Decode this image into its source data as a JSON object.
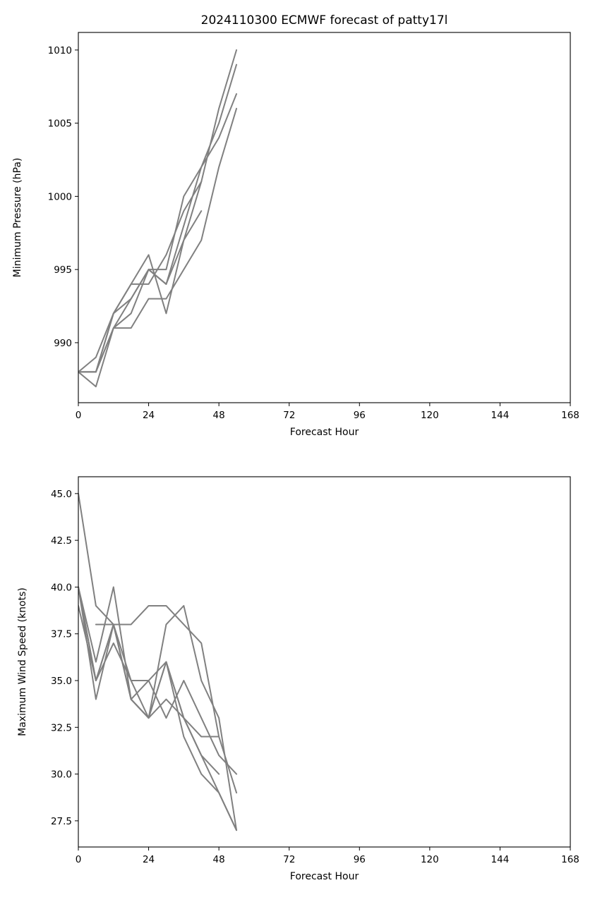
{
  "colors": {
    "series": "#808080",
    "axes": "#000000",
    "background": "#ffffff"
  },
  "chart_data": [
    {
      "type": "line",
      "title": "2024110300 ECMWF forecast of patty17l",
      "xlabel": "Forecast Hour",
      "ylabel": "Minimum Pressure (hPa)",
      "xlim": [
        0,
        168
      ],
      "ylim": [
        985.9,
        1011.2
      ],
      "xticks": [
        0,
        24,
        48,
        72,
        96,
        120,
        144,
        168
      ],
      "xtick_labels": [
        "0",
        "24",
        "48",
        "72",
        "96",
        "120",
        "144",
        "168"
      ],
      "yticks": [
        990,
        995,
        1000,
        1005,
        1010
      ],
      "ytick_labels": [
        "990",
        "995",
        "1000",
        "1005",
        "1010"
      ],
      "grid": false,
      "series": [
        {
          "x": [
            0,
            6,
            12,
            18,
            24,
            30,
            36,
            42,
            48,
            54
          ],
          "values": [
            988,
            988,
            992,
            994,
            996,
            992,
            997,
            1001,
            1006,
            1010
          ]
        },
        {
          "x": [
            0,
            6,
            12,
            18,
            24,
            30,
            36,
            42,
            48,
            54
          ],
          "values": [
            988,
            989,
            992,
            993,
            995,
            995,
            1000,
            1002,
            1005,
            1009
          ]
        },
        {
          "x": [
            0,
            6,
            12,
            18,
            24,
            30,
            36,
            42,
            48,
            54
          ],
          "values": [
            988,
            987,
            991,
            991,
            993,
            993,
            995,
            997,
            1002,
            1006
          ]
        },
        {
          "x": [
            0,
            6,
            12,
            18,
            24,
            30,
            36,
            42,
            48,
            54
          ],
          "values": [
            988,
            988,
            991,
            993,
            995,
            994,
            998,
            1002,
            1004,
            1007
          ]
        },
        {
          "x": [
            0,
            6,
            12,
            18,
            24,
            30,
            36,
            42
          ],
          "values": [
            988,
            988,
            992,
            994,
            994,
            996,
            999,
            1001
          ]
        },
        {
          "x": [
            0,
            6,
            12,
            18,
            24,
            30,
            36,
            42
          ],
          "values": [
            988,
            988,
            991,
            992,
            995,
            994,
            997,
            999
          ]
        }
      ]
    },
    {
      "type": "line",
      "title": "",
      "xlabel": "Forecast Hour",
      "ylabel": "Maximum Wind Speed (knots)",
      "xlim": [
        0,
        168
      ],
      "ylim": [
        26.1,
        45.9
      ],
      "xticks": [
        0,
        24,
        48,
        72,
        96,
        120,
        144,
        168
      ],
      "xtick_labels": [
        "0",
        "24",
        "48",
        "72",
        "96",
        "120",
        "144",
        "168"
      ],
      "yticks": [
        27.5,
        30.0,
        32.5,
        35.0,
        37.5,
        40.0,
        42.5,
        45.0
      ],
      "ytick_labels": [
        "27.5",
        "30.0",
        "32.5",
        "35.0",
        "37.5",
        "40.0",
        "42.5",
        "45.0"
      ],
      "grid": false,
      "series": [
        {
          "x": [
            0,
            6,
            12,
            18,
            24,
            30,
            36,
            42,
            48,
            54
          ],
          "values": [
            45,
            39,
            38,
            35,
            35,
            36,
            32,
            30,
            29,
            27
          ]
        },
        {
          "x": [
            0,
            6,
            12,
            18,
            24,
            30,
            36,
            42,
            48,
            54
          ],
          "values": [
            40,
            36,
            40,
            34,
            33,
            38,
            39,
            35,
            33,
            27
          ]
        },
        {
          "x": [
            0,
            6,
            12,
            18,
            24,
            30,
            36,
            42,
            48,
            54
          ],
          "values": [
            40,
            34,
            38,
            34,
            35,
            33,
            35,
            33,
            31,
            30
          ]
        },
        {
          "x": [
            0,
            6,
            12,
            18,
            24,
            30,
            36,
            42,
            48,
            54
          ],
          "values": [
            39,
            35,
            37,
            35,
            33,
            36,
            33,
            31,
            29,
            27
          ]
        },
        {
          "x": [
            6,
            12,
            18,
            24,
            30,
            36,
            42,
            48,
            54
          ],
          "values": [
            38,
            38,
            38,
            39,
            39,
            38,
            37,
            32,
            29
          ]
        },
        {
          "x": [
            0,
            6,
            12,
            18,
            24,
            30,
            36,
            42,
            48
          ],
          "values": [
            40,
            35,
            38,
            34,
            33,
            34,
            33,
            32,
            32
          ]
        },
        {
          "x": [
            0,
            6,
            12,
            18,
            24,
            30,
            36,
            42,
            48
          ],
          "values": [
            40,
            35,
            38,
            34,
            33,
            36,
            33,
            31,
            30
          ]
        }
      ]
    }
  ]
}
